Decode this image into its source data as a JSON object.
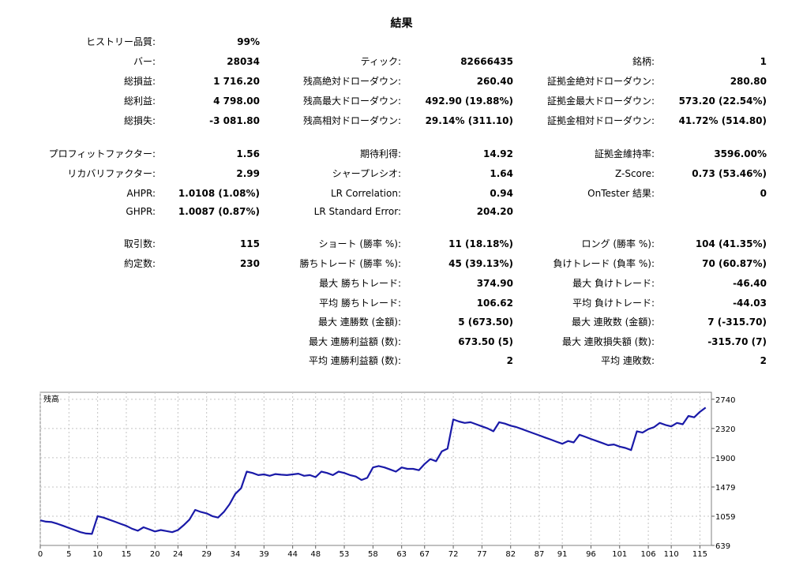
{
  "report": {
    "title": "結果",
    "rows": [
      [
        {
          "label": "ヒストリー品質:",
          "value": "99%"
        },
        null,
        null
      ],
      [
        {
          "label": "バー:",
          "value": "28034"
        },
        {
          "label": "ティック:",
          "value": "82666435"
        },
        {
          "label": "銘柄:",
          "value": "1"
        }
      ],
      [
        {
          "label": "総損益:",
          "value": "1 716.20"
        },
        {
          "label": "残高絶対ドローダウン:",
          "value": "260.40"
        },
        {
          "label": "証拠金絶対ドローダウン:",
          "value": "280.80"
        }
      ],
      [
        {
          "label": "総利益:",
          "value": "4 798.00"
        },
        {
          "label": "残高最大ドローダウン:",
          "value": "492.90 (19.88%)"
        },
        {
          "label": "証拠金最大ドローダウン:",
          "value": "573.20 (22.54%)"
        }
      ],
      [
        {
          "label": "総損失:",
          "value": "-3 081.80"
        },
        {
          "label": "残高相対ドローダウン:",
          "value": "29.14% (311.10)"
        },
        {
          "label": "証拠金相対ドローダウン:",
          "value": "41.72% (514.80)"
        }
      ],
      [
        {
          "label": "プロフィットファクター:",
          "value": "1.56"
        },
        {
          "label": "期待利得:",
          "value": "14.92"
        },
        {
          "label": "証拠金維持率:",
          "value": "3596.00%"
        }
      ],
      [
        {
          "label": "リカバリファクター:",
          "value": "2.99"
        },
        {
          "label": "シャープレシオ:",
          "value": "1.64"
        },
        {
          "label": "Z-Score:",
          "value": "0.73 (53.46%)"
        }
      ],
      [
        {
          "label": "AHPR:",
          "value": "1.0108 (1.08%)"
        },
        {
          "label": "LR Correlation:",
          "value": "0.94"
        },
        {
          "label": "OnTester 結果:",
          "value": "0"
        }
      ],
      [
        {
          "label": "GHPR:",
          "value": "1.0087 (0.87%)"
        },
        {
          "label": "LR Standard Error:",
          "value": "204.20"
        },
        null
      ],
      [
        {
          "label": "取引数:",
          "value": "115"
        },
        {
          "label": "ショート (勝率 %):",
          "value": "11 (18.18%)"
        },
        {
          "label": "ロング (勝率 %):",
          "value": "104 (41.35%)"
        }
      ],
      [
        {
          "label": "約定数:",
          "value": "230"
        },
        {
          "label": "勝ちトレード (勝率 %):",
          "value": "45 (39.13%)"
        },
        {
          "label": "負けトレード (負率 %):",
          "value": "70 (60.87%)"
        }
      ],
      [
        null,
        {
          "label": "最大 勝ちトレード:",
          "value": "374.90"
        },
        {
          "label": "最大 負けトレード:",
          "value": "-46.40"
        }
      ],
      [
        null,
        {
          "label": "平均 勝ちトレード:",
          "value": "106.62"
        },
        {
          "label": "平均 負けトレード:",
          "value": "-44.03"
        }
      ],
      [
        null,
        {
          "label": "最大 連勝数 (金額):",
          "value": "5 (673.50)"
        },
        {
          "label": "最大 連敗数 (金額):",
          "value": "7 (-315.70)"
        }
      ],
      [
        null,
        {
          "label": "最大 連勝利益額 (数):",
          "value": "673.50 (5)"
        },
        {
          "label": "最大 連敗損失額 (数):",
          "value": "-315.70 (7)"
        }
      ],
      [
        null,
        {
          "label": "平均 連勝利益額 (数):",
          "value": "2"
        },
        {
          "label": "平均 連敗数:",
          "value": "2"
        }
      ]
    ]
  },
  "chart_data": {
    "type": "line",
    "title": "残高",
    "xlabel": "",
    "ylabel": "",
    "x_ticks": [
      0,
      5,
      10,
      15,
      20,
      24,
      29,
      34,
      39,
      44,
      48,
      53,
      58,
      63,
      67,
      72,
      77,
      82,
      87,
      91,
      96,
      101,
      106,
      110,
      115
    ],
    "y_ticks": [
      639,
      1059,
      1479,
      1900,
      2320,
      2740
    ],
    "xlim": [
      0,
      117
    ],
    "ylim": [
      639,
      2840
    ],
    "grid": true,
    "series_color": "#1a1aa8",
    "series": [
      {
        "name": "残高",
        "points": [
          [
            0,
            1000
          ],
          [
            1,
            980
          ],
          [
            2,
            975
          ],
          [
            3,
            950
          ],
          [
            4,
            920
          ],
          [
            5,
            890
          ],
          [
            6,
            860
          ],
          [
            7,
            830
          ],
          [
            8,
            810
          ],
          [
            9,
            805
          ],
          [
            10,
            1060
          ],
          [
            11,
            1040
          ],
          [
            12,
            1010
          ],
          [
            13,
            980
          ],
          [
            14,
            950
          ],
          [
            15,
            920
          ],
          [
            16,
            880
          ],
          [
            17,
            850
          ],
          [
            18,
            900
          ],
          [
            19,
            870
          ],
          [
            20,
            840
          ],
          [
            21,
            860
          ],
          [
            22,
            845
          ],
          [
            23,
            830
          ],
          [
            24,
            860
          ],
          [
            25,
            930
          ],
          [
            26,
            1010
          ],
          [
            27,
            1150
          ],
          [
            28,
            1120
          ],
          [
            29,
            1100
          ],
          [
            30,
            1060
          ],
          [
            31,
            1040
          ],
          [
            32,
            1120
          ],
          [
            33,
            1230
          ],
          [
            34,
            1380
          ],
          [
            35,
            1460
          ],
          [
            36,
            1700
          ],
          [
            37,
            1680
          ],
          [
            38,
            1650
          ],
          [
            39,
            1660
          ],
          [
            40,
            1640
          ],
          [
            41,
            1665
          ],
          [
            42,
            1655
          ],
          [
            43,
            1650
          ],
          [
            44,
            1660
          ],
          [
            45,
            1670
          ],
          [
            46,
            1640
          ],
          [
            47,
            1650
          ],
          [
            48,
            1620
          ],
          [
            49,
            1700
          ],
          [
            50,
            1680
          ],
          [
            51,
            1650
          ],
          [
            52,
            1700
          ],
          [
            53,
            1680
          ],
          [
            54,
            1650
          ],
          [
            55,
            1630
          ],
          [
            56,
            1580
          ],
          [
            57,
            1610
          ],
          [
            58,
            1760
          ],
          [
            59,
            1780
          ],
          [
            60,
            1760
          ],
          [
            61,
            1730
          ],
          [
            62,
            1700
          ],
          [
            63,
            1760
          ],
          [
            64,
            1740
          ],
          [
            65,
            1740
          ],
          [
            66,
            1720
          ],
          [
            67,
            1810
          ],
          [
            68,
            1880
          ],
          [
            69,
            1850
          ],
          [
            70,
            1990
          ],
          [
            71,
            2030
          ],
          [
            72,
            2450
          ],
          [
            73,
            2420
          ],
          [
            74,
            2400
          ],
          [
            75,
            2410
          ],
          [
            76,
            2380
          ],
          [
            77,
            2350
          ],
          [
            78,
            2320
          ],
          [
            79,
            2280
          ],
          [
            80,
            2410
          ],
          [
            81,
            2390
          ],
          [
            82,
            2360
          ],
          [
            83,
            2340
          ],
          [
            84,
            2310
          ],
          [
            85,
            2280
          ],
          [
            86,
            2250
          ],
          [
            87,
            2220
          ],
          [
            88,
            2190
          ],
          [
            89,
            2160
          ],
          [
            90,
            2130
          ],
          [
            91,
            2100
          ],
          [
            92,
            2140
          ],
          [
            93,
            2120
          ],
          [
            94,
            2230
          ],
          [
            95,
            2200
          ],
          [
            96,
            2170
          ],
          [
            97,
            2140
          ],
          [
            98,
            2110
          ],
          [
            99,
            2080
          ],
          [
            100,
            2090
          ],
          [
            101,
            2060
          ],
          [
            102,
            2040
          ],
          [
            103,
            2010
          ],
          [
            104,
            2280
          ],
          [
            105,
            2260
          ],
          [
            106,
            2310
          ],
          [
            107,
            2340
          ],
          [
            108,
            2400
          ],
          [
            109,
            2370
          ],
          [
            110,
            2350
          ],
          [
            111,
            2400
          ],
          [
            112,
            2380
          ],
          [
            113,
            2500
          ],
          [
            114,
            2480
          ],
          [
            115,
            2560
          ],
          [
            116,
            2620
          ]
        ]
      }
    ]
  }
}
